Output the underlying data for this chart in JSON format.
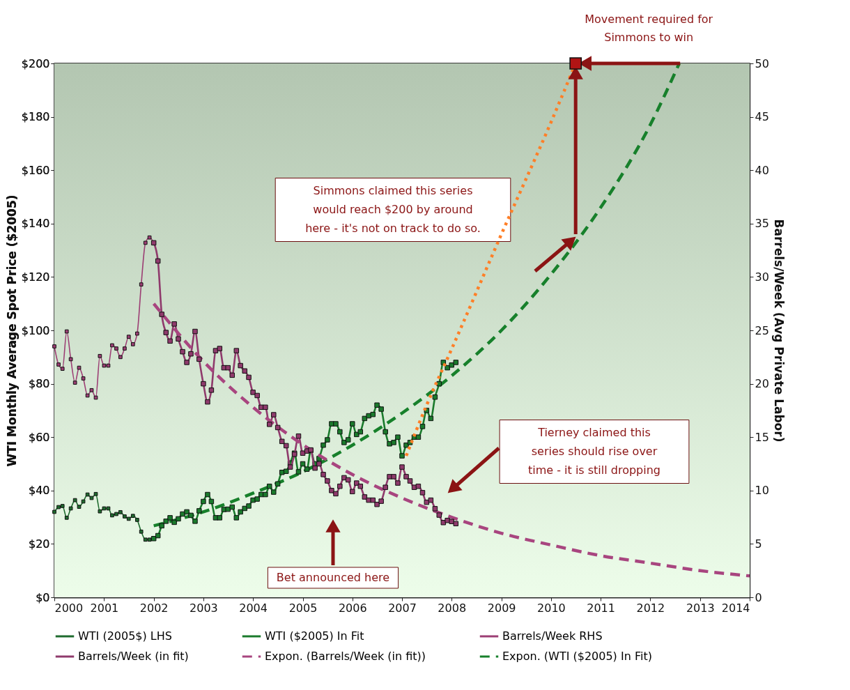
{
  "chart_data": {
    "type": "line",
    "ylabel": "WTI Monthly Average Spot Price ($2005)",
    "y2label": "Barrels/Week (Avg Private Labor)",
    "xlim": [
      "2000-01",
      "2014-01"
    ],
    "xticks": [
      {
        "value": "2000-01",
        "label": "2000"
      },
      {
        "value": "2001-01",
        "label": "2001"
      },
      {
        "value": "2002-01",
        "label": "2002"
      },
      {
        "value": "2003-01",
        "label": "2003"
      },
      {
        "value": "2004-01",
        "label": "2004"
      },
      {
        "value": "2005-01",
        "label": "2005"
      },
      {
        "value": "2006-01",
        "label": "2006"
      },
      {
        "value": "2007-01",
        "label": "2007"
      },
      {
        "value": "2008-01",
        "label": "2008"
      },
      {
        "value": "2009-01",
        "label": "2009"
      },
      {
        "value": "2010-01",
        "label": "2010"
      },
      {
        "value": "2011-01",
        "label": "2011"
      },
      {
        "value": "2012-01",
        "label": "2012"
      },
      {
        "value": "2013-01",
        "label": "2013"
      },
      {
        "value": "2014-01",
        "label": "2014"
      }
    ],
    "ylim": [
      0,
      200
    ],
    "yticks": [
      {
        "value": 0,
        "label": "$0"
      },
      {
        "value": 20,
        "label": "$20"
      },
      {
        "value": 40,
        "label": "$40"
      },
      {
        "value": 60,
        "label": "$60"
      },
      {
        "value": 80,
        "label": "$80"
      },
      {
        "value": 100,
        "label": "$100"
      },
      {
        "value": 120,
        "label": "$120"
      },
      {
        "value": 140,
        "label": "$140"
      },
      {
        "value": 160,
        "label": "$160"
      },
      {
        "value": 180,
        "label": "$180"
      },
      {
        "value": 200,
        "label": "$200"
      }
    ],
    "y2lim": [
      0,
      50
    ],
    "y2ticks": [
      0,
      5,
      10,
      15,
      20,
      25,
      30,
      35,
      40,
      45,
      50
    ],
    "grid": true,
    "legend": "bottom",
    "series": [
      {
        "name": "WTI (2005$) LHS",
        "type": "line",
        "color": "#1e6b2e",
        "marker": "square",
        "line_style": "solid",
        "x": [
          "2000-01",
          "2000-02",
          "2000-03",
          "2000-04",
          "2000-05",
          "2000-06",
          "2000-07",
          "2000-08",
          "2000-09",
          "2000-10",
          "2000-11",
          "2000-12",
          "2001-01",
          "2001-02",
          "2001-03",
          "2001-04",
          "2001-05",
          "2001-06",
          "2001-07",
          "2001-08",
          "2001-09",
          "2001-10",
          "2001-11",
          "2001-12",
          "2002-01"
        ],
        "values": [
          32.0,
          33.8,
          34.2,
          29.8,
          33.3,
          36.4,
          33.9,
          35.9,
          38.5,
          37.2,
          38.7,
          32.2,
          33.3,
          33.3,
          30.7,
          31.2,
          31.9,
          30.3,
          29.4,
          30.5,
          29.0,
          24.6,
          21.6,
          21.6,
          22.0
        ]
      },
      {
        "name": "WTI ($2005) In Fit",
        "type": "line",
        "color": "#1a7a2c",
        "marker": "square",
        "line_style": "solid",
        "x": [
          "2002-01",
          "2002-02",
          "2002-03",
          "2002-04",
          "2002-05",
          "2002-06",
          "2002-07",
          "2002-08",
          "2002-09",
          "2002-10",
          "2002-11",
          "2002-12",
          "2003-01",
          "2003-02",
          "2003-03",
          "2003-04",
          "2003-05",
          "2003-06",
          "2003-07",
          "2003-08",
          "2003-09",
          "2003-10",
          "2003-11",
          "2003-12",
          "2004-01",
          "2004-02",
          "2004-03",
          "2004-04",
          "2004-05",
          "2004-06",
          "2004-07",
          "2004-08",
          "2004-09",
          "2004-10",
          "2004-11",
          "2004-12",
          "2005-01",
          "2005-02",
          "2005-03",
          "2005-04",
          "2005-05",
          "2005-06",
          "2005-07",
          "2005-08",
          "2005-09",
          "2005-10",
          "2005-11",
          "2005-12",
          "2006-01",
          "2006-02",
          "2006-03",
          "2006-04",
          "2006-05",
          "2006-06",
          "2006-07",
          "2006-08",
          "2006-09",
          "2006-10",
          "2006-11",
          "2006-12",
          "2007-01",
          "2007-02",
          "2007-03",
          "2007-04",
          "2007-05",
          "2007-06",
          "2007-07",
          "2007-08",
          "2007-09",
          "2007-10",
          "2007-11",
          "2007-12",
          "2008-01",
          "2008-02"
        ],
        "values": [
          22.0,
          23.1,
          26.8,
          28.5,
          29.8,
          28.1,
          29.4,
          31.2,
          32.0,
          30.7,
          28.5,
          32.4,
          35.9,
          38.5,
          35.9,
          29.8,
          29.8,
          32.9,
          33.0,
          33.8,
          29.8,
          32.0,
          33.3,
          34.2,
          36.4,
          36.8,
          38.5,
          38.5,
          41.6,
          39.4,
          42.5,
          46.8,
          47.2,
          50.3,
          54.0,
          47.0,
          50.0,
          48.0,
          55.0,
          50.0,
          52.0,
          57.0,
          59.0,
          65.0,
          65.0,
          62.0,
          58.0,
          59.0,
          65.0,
          61.0,
          62.0,
          67.0,
          68.0,
          68.5,
          72.0,
          70.5,
          62.0,
          57.5,
          58.0,
          60.0,
          53.0,
          57.0,
          58.0,
          60.0,
          60.0,
          64.0,
          70.0,
          67.0,
          75.0,
          80.0,
          88.0,
          86.0,
          87.0,
          88.0
        ]
      },
      {
        "name": "Barrels/Week RHS",
        "type": "line",
        "axis": "y2",
        "color": "#9c3e74",
        "marker": "square",
        "line_style": "solid",
        "x": [
          "2000-01",
          "2000-02",
          "2000-03",
          "2000-04",
          "2000-05",
          "2000-06",
          "2000-07",
          "2000-08",
          "2000-09",
          "2000-10",
          "2000-11",
          "2000-12",
          "2001-01",
          "2001-02",
          "2001-03",
          "2001-04",
          "2001-05",
          "2001-06",
          "2001-07",
          "2001-08",
          "2001-09",
          "2001-10",
          "2001-11",
          "2001-12",
          "2002-01"
        ],
        "values": [
          23.5,
          21.8,
          21.4,
          24.9,
          22.3,
          20.1,
          21.5,
          20.5,
          18.9,
          19.4,
          18.7,
          22.6,
          21.7,
          21.7,
          23.6,
          23.3,
          22.5,
          23.3,
          24.4,
          23.7,
          24.7,
          29.3,
          33.2,
          33.7,
          33.2
        ]
      },
      {
        "name": "Barrels/Week (in fit)",
        "type": "line",
        "axis": "y2",
        "color": "#8f3a6c",
        "marker": "square",
        "line_style": "solid",
        "x": [
          "2002-01",
          "2002-02",
          "2002-03",
          "2002-04",
          "2002-05",
          "2002-06",
          "2002-07",
          "2002-08",
          "2002-09",
          "2002-10",
          "2002-11",
          "2002-12",
          "2003-01",
          "2003-02",
          "2003-03",
          "2003-04",
          "2003-05",
          "2003-06",
          "2003-07",
          "2003-08",
          "2003-09",
          "2003-10",
          "2003-11",
          "2003-12",
          "2004-01",
          "2004-02",
          "2004-03",
          "2004-04",
          "2004-05",
          "2004-06",
          "2004-07",
          "2004-08",
          "2004-09",
          "2004-10",
          "2004-11",
          "2004-12",
          "2005-01",
          "2005-02",
          "2005-03",
          "2005-04",
          "2005-05",
          "2005-06",
          "2005-07",
          "2005-08",
          "2005-09",
          "2005-10",
          "2005-11",
          "2005-12",
          "2006-01",
          "2006-02",
          "2006-03",
          "2006-04",
          "2006-05",
          "2006-06",
          "2006-07",
          "2006-08",
          "2006-09",
          "2006-10",
          "2006-11",
          "2006-12",
          "2007-01",
          "2007-02",
          "2007-03",
          "2007-04",
          "2007-05",
          "2007-06",
          "2007-07",
          "2007-08",
          "2007-09",
          "2007-10",
          "2007-11",
          "2007-12",
          "2008-01",
          "2008-02"
        ],
        "values": [
          33.2,
          31.5,
          26.5,
          24.8,
          24.0,
          25.6,
          24.2,
          23.0,
          22.0,
          22.8,
          24.9,
          22.3,
          20.0,
          18.3,
          19.4,
          23.1,
          23.3,
          21.5,
          21.5,
          20.8,
          23.1,
          21.7,
          21.2,
          20.6,
          19.2,
          18.9,
          17.8,
          17.8,
          16.2,
          17.1,
          15.9,
          14.6,
          14.2,
          12.2,
          13.4,
          15.1,
          13.5,
          13.7,
          13.8,
          12.1,
          12.5,
          11.5,
          10.9,
          10.0,
          9.7,
          10.4,
          11.2,
          11.0,
          9.9,
          10.7,
          10.4,
          9.4,
          9.1,
          9.1,
          8.7,
          9.0,
          10.3,
          11.3,
          11.3,
          10.7,
          12.2,
          11.3,
          10.9,
          10.3,
          10.4,
          9.8,
          8.9,
          9.1,
          8.3,
          7.7,
          7.0,
          7.2,
          7.1,
          6.9
        ]
      },
      {
        "name": "Expon. (Barrels/Week (in fit))",
        "type": "line",
        "axis": "y2",
        "color": "#a8457f",
        "marker": "none",
        "line_style": "dashed",
        "x": [
          "2002-01",
          "2003-01",
          "2004-01",
          "2005-01",
          "2006-01",
          "2007-01",
          "2008-01",
          "2009-01",
          "2010-01",
          "2011-01",
          "2012-01",
          "2013-01",
          "2014-01"
        ],
        "values": [
          27.5,
          22.1,
          17.8,
          14.3,
          11.5,
          9.3,
          7.5,
          6.0,
          4.9,
          3.9,
          3.2,
          2.5,
          2.0
        ]
      },
      {
        "name": "Expon. (WTI ($2005) In Fit)",
        "type": "line",
        "color": "#17802b",
        "marker": "none",
        "line_style": "dashed",
        "x": [
          "2002-01",
          "2003-01",
          "2004-01",
          "2005-01",
          "2006-01",
          "2007-01",
          "2008-01",
          "2009-01",
          "2010-01",
          "2011-01",
          "2012-01",
          "2012-08"
        ],
        "values": [
          26.8,
          32,
          39,
          47,
          57,
          69,
          83,
          100,
          121,
          146,
          177,
          200
        ]
      },
      {
        "type": "line",
        "color": "#ff7f27",
        "marker": "none",
        "line_style": "dotted",
        "x": [
          "2007-02",
          "2007-07",
          "2008-01",
          "2009-01",
          "2010-01",
          "2010-07"
        ],
        "values": [
          53,
          72,
          93,
          136,
          178,
          200
        ]
      },
      {
        "type": "scatter",
        "color": "#b01414",
        "marker": "square",
        "x": [
          "2010-07"
        ],
        "values": [
          200
        ]
      }
    ],
    "annotations": [
      {
        "text": "Movement required for\nSimmons to win",
        "x": "2010-07",
        "y": 200
      },
      "Simmons claimed this series\nwould reach $200 by around\nhere - it's not on track to do so.",
      "Tierney claimed this\nseries should rise over\ntime - it is still dropping",
      "Bet announced here"
    ]
  }
}
